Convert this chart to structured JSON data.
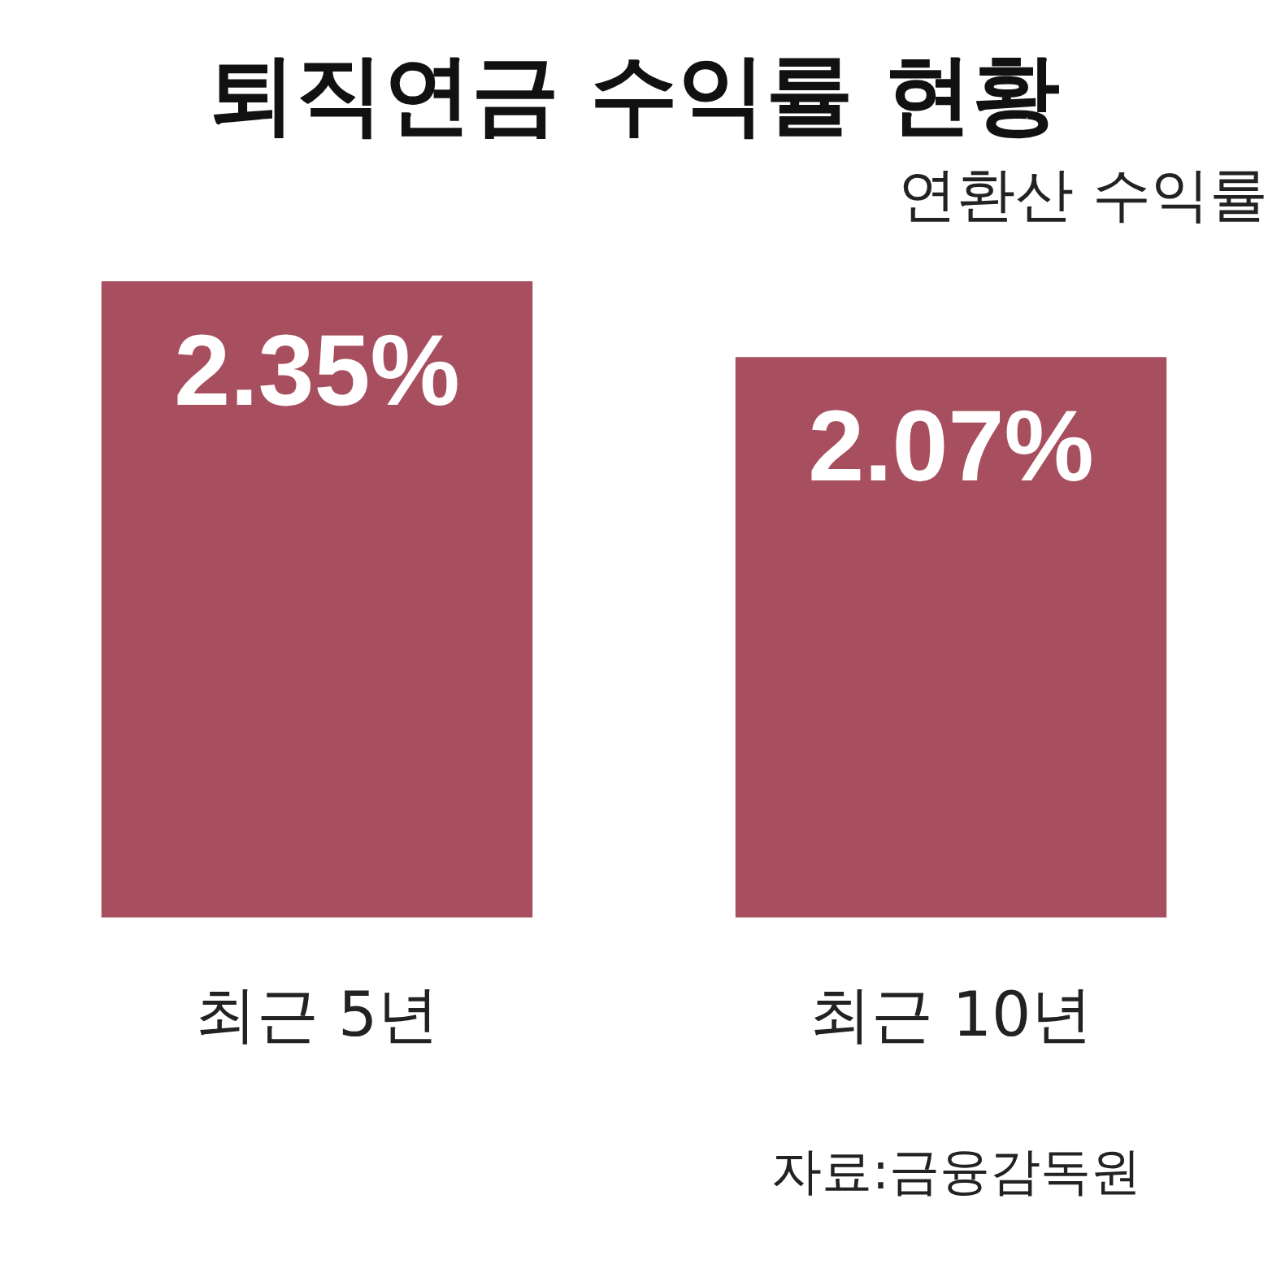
{
  "chart_data": {
    "type": "bar",
    "title": "퇴직연금 수익률 현황",
    "subtitle": "연환산 수익률",
    "categories": [
      "최근 5년",
      "최근 10년"
    ],
    "values": [
      2.35,
      2.07
    ],
    "color": "#a84f5f",
    "value_labels": [
      "2.35%",
      "2.07%"
    ],
    "annotations": [
      "자료:금융감독원"
    ],
    "grid": false,
    "legend": false
  }
}
